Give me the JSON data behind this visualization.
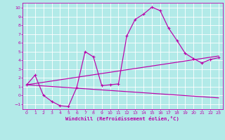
{
  "xlabel": "Windchill (Refroidissement éolien,°C)",
  "bg_color": "#b2eae8",
  "line_color": "#bb00aa",
  "grid_color": "#c8e8e6",
  "xlim": [
    -0.5,
    23.5
  ],
  "ylim": [
    -1.6,
    10.6
  ],
  "xticks": [
    0,
    1,
    2,
    3,
    4,
    5,
    6,
    7,
    8,
    9,
    10,
    11,
    12,
    13,
    14,
    15,
    16,
    17,
    18,
    19,
    20,
    21,
    22,
    23
  ],
  "yticks": [
    -1,
    0,
    1,
    2,
    3,
    4,
    5,
    6,
    7,
    8,
    9,
    10
  ],
  "curve_x": [
    0,
    1,
    2,
    3,
    4,
    5,
    6,
    7,
    8,
    9,
    10,
    11,
    12,
    13,
    14,
    15,
    16,
    17,
    18,
    19,
    20,
    21,
    22,
    23
  ],
  "curve_y": [
    1.2,
    2.3,
    0.0,
    -0.7,
    -1.2,
    -1.3,
    0.9,
    5.0,
    4.4,
    1.1,
    1.2,
    1.3,
    6.8,
    8.7,
    9.3,
    10.1,
    9.7,
    7.7,
    6.3,
    4.8,
    4.2,
    3.7,
    4.1,
    4.3
  ],
  "upper_line_x": [
    0,
    23
  ],
  "upper_line_y": [
    1.2,
    4.5
  ],
  "lower_line_x": [
    0,
    23
  ],
  "lower_line_y": [
    1.2,
    -0.3
  ]
}
